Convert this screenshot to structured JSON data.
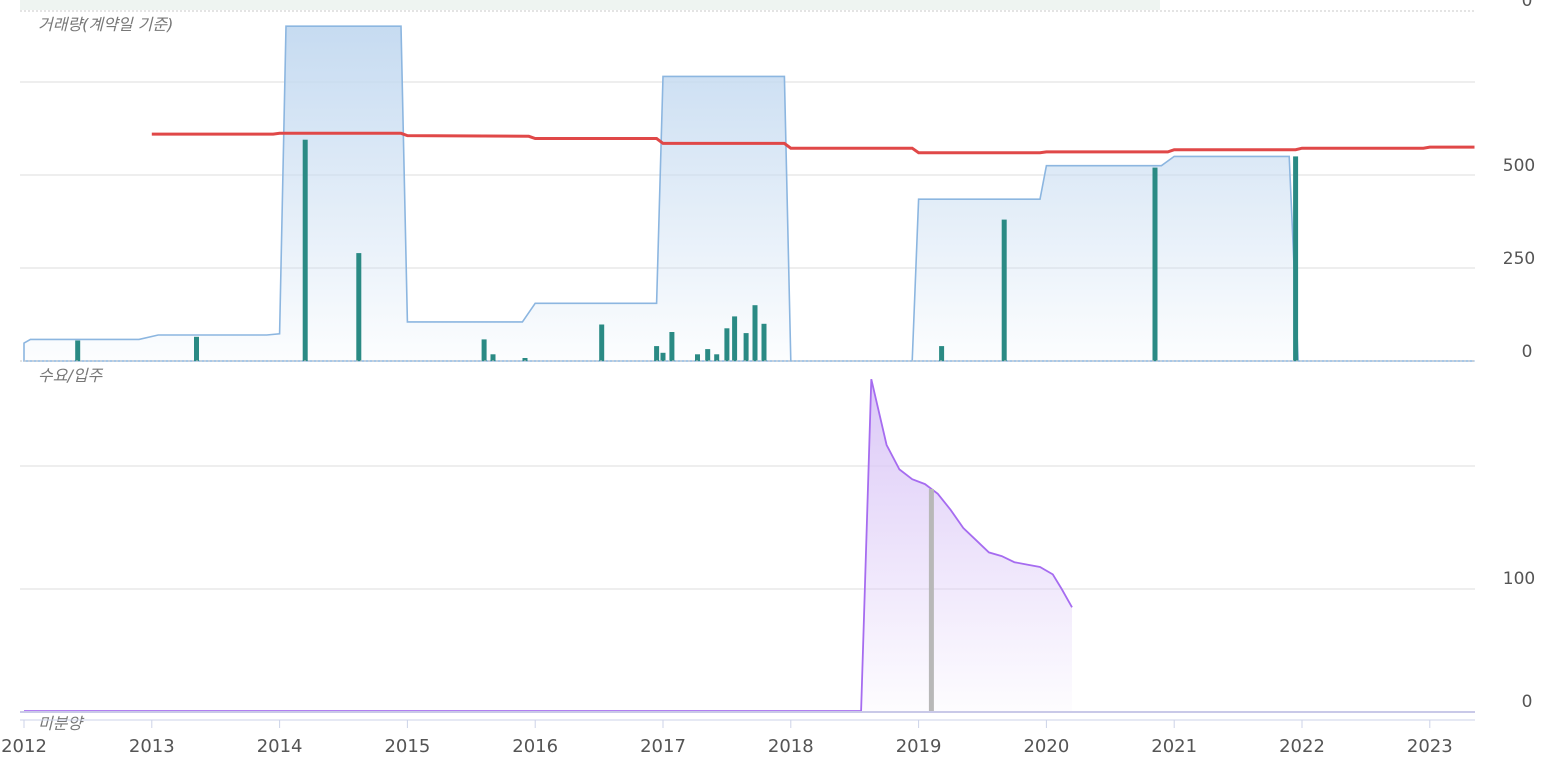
{
  "colors": {
    "price_fill": "#c6dbf1",
    "price_line": "#8cb6e0",
    "volume_bar": "#2a8a84",
    "avg_line": "#e04848",
    "supply_fill": "#dcc9f7",
    "supply_line": "#a66cf0",
    "supply_bar": "#b8b8b8",
    "grid": "#e4e4e4"
  },
  "chart_data": [
    {
      "type": "area",
      "panel": "volume",
      "title": "거래량(계약일 기준)",
      "yticks": [
        "500",
        "250",
        "0"
      ],
      "ytick_values": [
        500,
        250,
        0
      ],
      "top_cut_label": "0",
      "ylim": [
        0,
        900
      ],
      "x_range": [
        2012.0,
        2023.35
      ],
      "xticks": [
        "2012",
        "2013",
        "2014",
        "2015",
        "2016",
        "2017",
        "2018",
        "2019",
        "2020",
        "2021",
        "2022",
        "2023"
      ],
      "series": [
        {
          "kind": "area",
          "points": [
            [
              2012.0,
              48
            ],
            [
              2012.05,
              58
            ],
            [
              2012.9,
              58
            ],
            [
              2013.05,
              70
            ],
            [
              2013.9,
              70
            ],
            [
              2014.0,
              73
            ],
            [
              2014.05,
              900
            ],
            [
              2014.95,
              900
            ],
            [
              2015.0,
              105
            ],
            [
              2015.9,
              105
            ],
            [
              2016.0,
              155
            ],
            [
              2016.95,
              155
            ],
            [
              2017.0,
              765
            ],
            [
              2017.95,
              765
            ],
            [
              2018.0,
              0
            ],
            [
              2018.95,
              0
            ],
            [
              2019.0,
              435
            ],
            [
              2019.95,
              435
            ],
            [
              2020.0,
              525
            ],
            [
              2020.9,
              525
            ],
            [
              2021.0,
              550
            ],
            [
              2021.9,
              550
            ],
            [
              2021.97,
              0
            ],
            [
              2023.35,
              0
            ]
          ]
        },
        {
          "kind": "line",
          "points": [
            [
              2013.0,
              610
            ],
            [
              2013.95,
              610
            ],
            [
              2014.0,
              612
            ],
            [
              2014.95,
              612
            ],
            [
              2015.0,
              606
            ],
            [
              2015.95,
              604
            ],
            [
              2016.0,
              598
            ],
            [
              2016.95,
              598
            ],
            [
              2017.0,
              585
            ],
            [
              2017.95,
              585
            ],
            [
              2018.0,
              572
            ],
            [
              2018.95,
              572
            ],
            [
              2019.0,
              560
            ],
            [
              2019.95,
              560
            ],
            [
              2020.0,
              562
            ],
            [
              2020.95,
              562
            ],
            [
              2021.0,
              568
            ],
            [
              2021.95,
              568
            ],
            [
              2022.0,
              572
            ],
            [
              2022.95,
              572
            ],
            [
              2023.0,
              575
            ],
            [
              2023.35,
              575
            ]
          ]
        },
        {
          "kind": "bars",
          "points": [
            [
              2012.42,
              55
            ],
            [
              2013.35,
              65
            ],
            [
              2014.2,
              595
            ],
            [
              2014.62,
              290
            ],
            [
              2015.6,
              58
            ],
            [
              2015.67,
              18
            ],
            [
              2015.92,
              8
            ],
            [
              2016.52,
              98
            ],
            [
              2016.95,
              40
            ],
            [
              2017.0,
              22
            ],
            [
              2017.07,
              78
            ],
            [
              2017.27,
              18
            ],
            [
              2017.35,
              32
            ],
            [
              2017.42,
              18
            ],
            [
              2017.5,
              88
            ],
            [
              2017.56,
              120
            ],
            [
              2017.65,
              75
            ],
            [
              2017.72,
              150
            ],
            [
              2017.79,
              100
            ],
            [
              2019.18,
              40
            ],
            [
              2019.67,
              380
            ],
            [
              2020.85,
              520
            ],
            [
              2021.95,
              550
            ]
          ]
        }
      ]
    },
    {
      "type": "area",
      "panel": "supply",
      "title": "수요/입주",
      "yticks": [
        "100",
        "0"
      ],
      "ytick_values": [
        100,
        0
      ],
      "ylim": [
        0,
        270
      ],
      "x_range": [
        2012.0,
        2023.35
      ],
      "series": [
        {
          "kind": "area",
          "points": [
            [
              2012.0,
              0
            ],
            [
              2018.55,
              0
            ],
            [
              2018.63,
              272
            ],
            [
              2018.75,
              218
            ],
            [
              2018.85,
              198
            ],
            [
              2018.95,
              190
            ],
            [
              2019.05,
              186
            ],
            [
              2019.15,
              178
            ],
            [
              2019.25,
              165
            ],
            [
              2019.35,
              150
            ],
            [
              2019.45,
              140
            ],
            [
              2019.55,
              130
            ],
            [
              2019.65,
              127
            ],
            [
              2019.75,
              122
            ],
            [
              2019.85,
              120
            ],
            [
              2019.95,
              118
            ],
            [
              2020.05,
              112
            ],
            [
              2020.12,
              100
            ],
            [
              2020.2,
              85
            ]
          ]
        },
        {
          "kind": "bars",
          "points": [
            [
              2019.1,
              182
            ]
          ]
        }
      ]
    },
    {
      "type": "bar",
      "panel": "unsold",
      "title": "미분양",
      "series": []
    }
  ]
}
